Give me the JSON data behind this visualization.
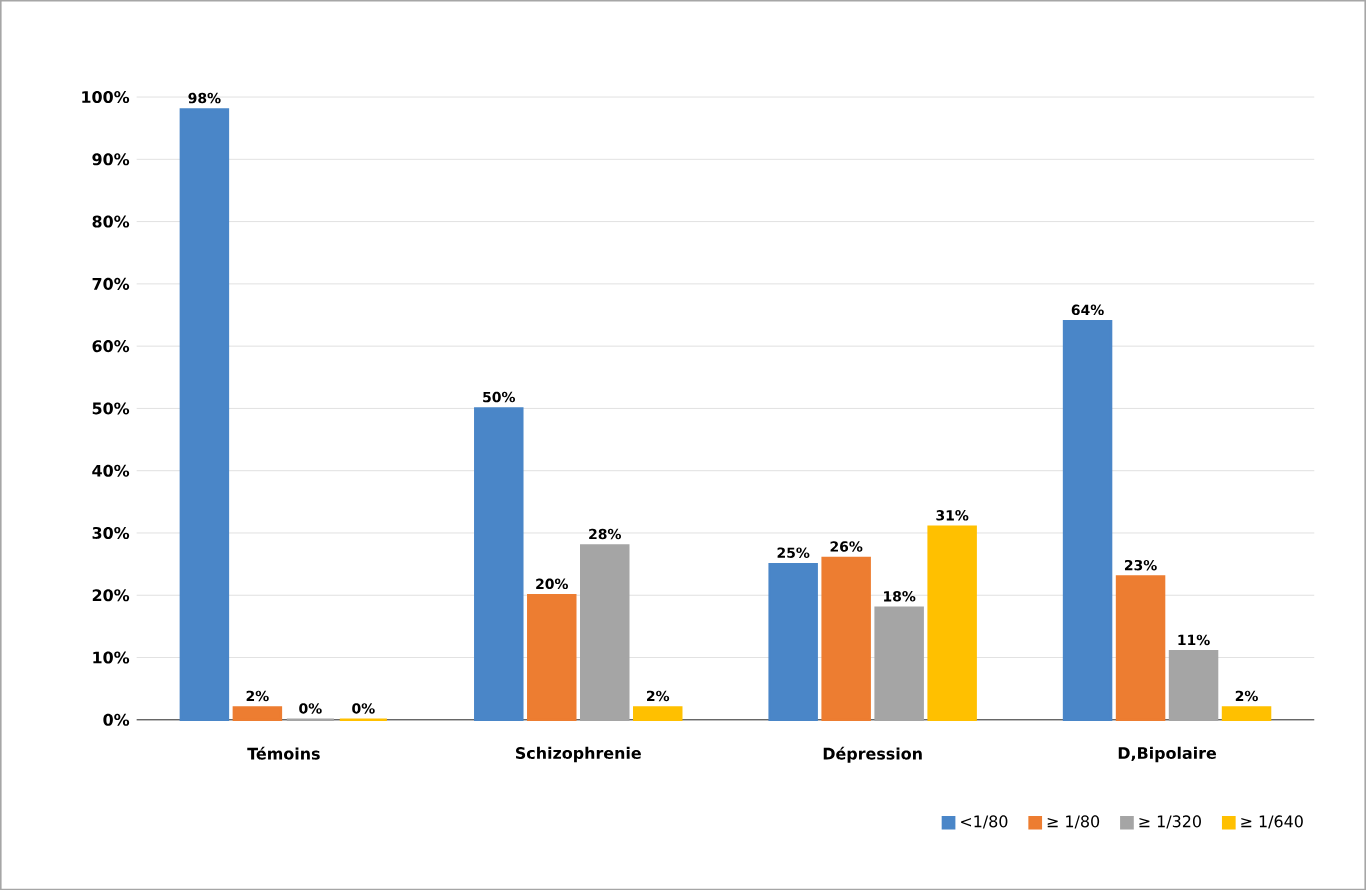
{
  "chart_data": {
    "type": "bar",
    "categories": [
      "Témoins",
      "Schizophrenie",
      "Dépression",
      "D,Bipolaire"
    ],
    "series": [
      {
        "name": "<1/80",
        "color": "#4a86c8",
        "values": [
          98,
          50,
          25,
          64
        ],
        "value_labels": [
          "98%",
          "50%",
          "25%",
          "64%"
        ]
      },
      {
        "name": "≥ 1/80",
        "color": "#ed7d31",
        "values": [
          2,
          20,
          26,
          23
        ],
        "value_labels": [
          "2%",
          "20%",
          "26%",
          "23%"
        ]
      },
      {
        "name": "≥ 1/320",
        "color": "#a5a5a5",
        "values": [
          0,
          28,
          18,
          11
        ],
        "value_labels": [
          "0%",
          "28%",
          "18%",
          "11%"
        ]
      },
      {
        "name": "≥ 1/640",
        "color": "#ffc000",
        "values": [
          0,
          2,
          31,
          2
        ],
        "value_labels": [
          "0%",
          "2%",
          "31%",
          "2%"
        ]
      }
    ],
    "ylim": [
      0,
      100
    ],
    "yticks": [
      {
        "value": 0,
        "label": "0%"
      },
      {
        "value": 10,
        "label": "10%"
      },
      {
        "value": 20,
        "label": "20%"
      },
      {
        "value": 30,
        "label": "30%"
      },
      {
        "value": 40,
        "label": "40%"
      },
      {
        "value": 50,
        "label": "50%"
      },
      {
        "value": 60,
        "label": "60%"
      },
      {
        "value": 70,
        "label": "70%"
      },
      {
        "value": 80,
        "label": "80%"
      },
      {
        "value": 90,
        "label": "90%"
      },
      {
        "value": 100,
        "label": "100%"
      }
    ],
    "grid": "y",
    "legend": "bottom right"
  }
}
